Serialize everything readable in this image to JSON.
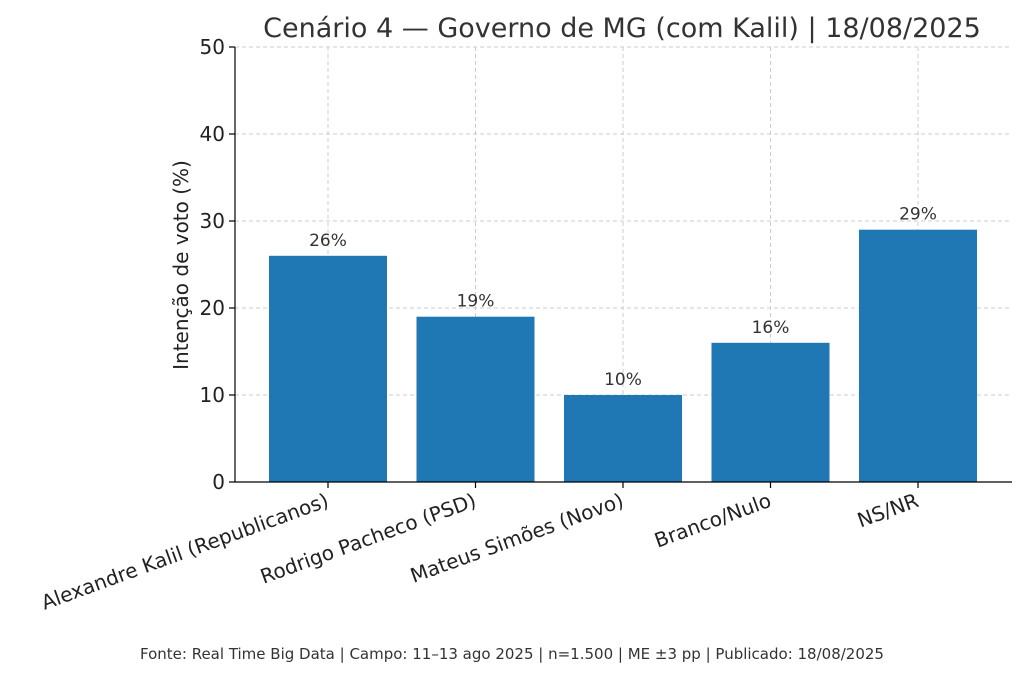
{
  "chart_data": {
    "type": "bar",
    "title": "Cenário 4 — Governo de MG (com Kalil) | 18/08/2025",
    "xlabel": "",
    "ylabel": "Intenção de voto (%)",
    "categories": [
      "Alexandre Kalil (Republicanos)",
      "Rodrigo Pacheco (PSD)",
      "Mateus Simões (Novo)",
      "Branco/Nulo",
      "NS/NR"
    ],
    "values": [
      26,
      19,
      10,
      16,
      29
    ],
    "data_labels": [
      "26%",
      "19%",
      "10%",
      "16%",
      "29%"
    ],
    "ylim": [
      0,
      50
    ],
    "yticks": [
      0,
      10,
      20,
      30,
      40,
      50
    ],
    "grid": true,
    "bar_color": "#1f77b4"
  },
  "footer": {
    "source": "Fonte: Real Time Big Data | Campo: 11–13 ago 2025 | n=1.500 | ME ±3 pp | Publicado: 18/08/2025"
  }
}
